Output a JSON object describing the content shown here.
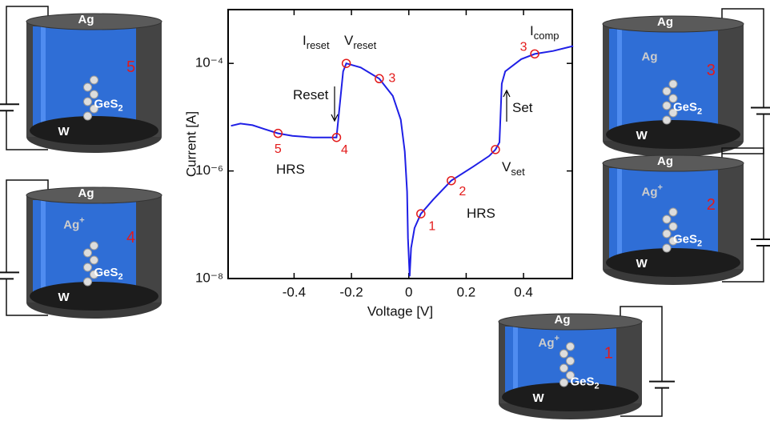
{
  "chart_data": {
    "type": "line",
    "x_label": "Voltage [V]",
    "y_label": "Current [A]",
    "xlim": [
      -0.63,
      0.57
    ],
    "ylim": [
      1e-08,
      0.001
    ],
    "ylog": true,
    "xticks": [
      -0.4,
      -0.2,
      0,
      0.2,
      0.4
    ],
    "yticks": [
      {
        "value": 1e-08,
        "label": "10⁻⁸"
      },
      {
        "value": 1e-06,
        "label": "10⁻⁶"
      },
      {
        "value": 0.0001,
        "label": "10⁻⁴"
      }
    ],
    "color": "#1f1fe6",
    "marker_color": "#e31a1a",
    "x": [
      -0.62,
      -0.587,
      -0.545,
      -0.503,
      -0.456,
      -0.406,
      -0.336,
      -0.252,
      -0.229,
      -0.218,
      -0.168,
      -0.103,
      -0.056,
      -0.028,
      -0.014,
      -0.006,
      -0.003,
      0.003,
      0.008,
      0.02,
      0.042,
      0.084,
      0.148,
      0.224,
      0.28,
      0.302,
      0.316,
      0.324,
      0.336,
      0.392,
      0.439,
      0.503,
      0.573
    ],
    "values": [
      6.9e-06,
      7.6e-06,
      7.1e-06,
      6e-06,
      5e-06,
      4.5e-06,
      4.2e-06,
      4.2e-06,
      7.1e-05,
      0.0001,
      8.4e-05,
      5.2e-05,
      2.5e-05,
      9e-06,
      2.3e-06,
      4.1e-07,
      5.6e-08,
      1.1e-08,
      3.7e-08,
      8.7e-08,
      1.6e-07,
      2.9e-07,
      6.6e-07,
      1.2e-06,
      1.9e-06,
      2.5e-06,
      3.4e-06,
      4.2e-05,
      7.1e-05,
      0.00012,
      0.00015,
      0.00017,
      0.00021
    ],
    "labeled_points": {
      "x": [
        -0.456,
        -0.252,
        -0.103,
        0.042,
        0.148,
        0.439
      ],
      "values": [
        5e-06,
        4.2e-06,
        5.2e-05,
        1.6e-07,
        6.6e-07,
        0.00015
      ],
      "labels": [
        "5",
        "4",
        "3",
        "1",
        "2",
        "3"
      ]
    },
    "points": {
      "x": [
        -0.218,
        0.302
      ],
      "values": [
        0.0001,
        2.5e-06
      ]
    },
    "annotations": [
      {
        "text": "I",
        "sub": "reset"
      },
      {
        "text": "V",
        "sub": "reset"
      },
      {
        "text": "Reset"
      },
      {
        "text": "HRS"
      },
      {
        "text": "HRS"
      },
      {
        "text": "Set"
      },
      {
        "text": "V",
        "sub": "set"
      },
      {
        "text": "I",
        "sub": "comp"
      }
    ],
    "cells": [
      {
        "step": "5",
        "top": "Ag",
        "electrolyte": "GeS",
        "electrolyte_sub": "2",
        "bottom": "W"
      },
      {
        "step": "4",
        "top": "Ag",
        "ion": "Ag",
        "ion_sup": "+",
        "electrolyte": "GeS",
        "electrolyte_sub": "2",
        "bottom": "W"
      },
      {
        "step": "3",
        "top": "Ag",
        "ion": "Ag",
        "electrolyte": "GeS",
        "electrolyte_sub": "2",
        "bottom": "W"
      },
      {
        "step": "2",
        "top": "Ag",
        "ion": "Ag",
        "ion_sup": "+",
        "electrolyte": "GeS",
        "electrolyte_sub": "2",
        "bottom": "W"
      },
      {
        "step": "1",
        "top": "Ag",
        "ion": "Ag",
        "ion_sup": "+",
        "electrolyte": "GeS",
        "electrolyte_sub": "2",
        "bottom": "W"
      }
    ]
  }
}
